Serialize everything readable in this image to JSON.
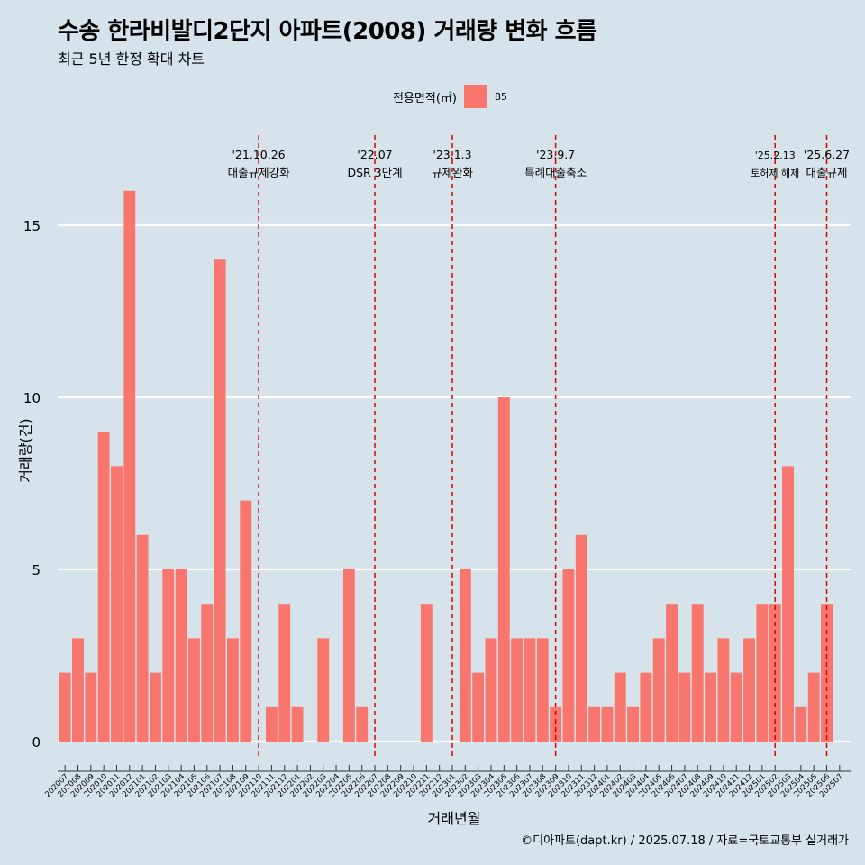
{
  "title": "수송 한라비발디2단지 아파트(2008) 거래량 변화 흐름",
  "subtitle": "최근 5년 한정 확대 차트",
  "caption": "©디아파트(dapt.kr) / 2025.07.18 / 자료=국토교통부 실거래가",
  "legend": {
    "title": "전용면적(㎡)",
    "label": "85",
    "color": "#f8766d"
  },
  "colors": {
    "background": "#d6e3ea",
    "bar": "#f8766d",
    "grid": "#ffffff",
    "event_line": "#e00000"
  },
  "chart_data": {
    "type": "bar",
    "title": "수송 한라비발디2단지 아파트(2008) 거래량 변화 흐름",
    "subtitle": "최근 5년 한정 확대 차트",
    "xlabel": "거래년월",
    "ylabel": "거래량(건)",
    "ylim": [
      0,
      16
    ],
    "yticks": [
      0,
      5,
      10,
      15
    ],
    "grid": "horizontal",
    "legend_position": "top",
    "categories": [
      "202007",
      "202008",
      "202009",
      "202010",
      "202011",
      "202012",
      "202101",
      "202102",
      "202103",
      "202104",
      "202105",
      "202106",
      "202107",
      "202108",
      "202109",
      "202110",
      "202111",
      "202112",
      "202201",
      "202202",
      "202203",
      "202204",
      "202205",
      "202206",
      "202207",
      "202208",
      "202209",
      "202210",
      "202211",
      "202212",
      "202301",
      "202302",
      "202303",
      "202304",
      "202305",
      "202306",
      "202307",
      "202308",
      "202309",
      "202310",
      "202311",
      "202312",
      "202401",
      "202402",
      "202403",
      "202404",
      "202405",
      "202406",
      "202407",
      "202408",
      "202409",
      "202410",
      "202411",
      "202412",
      "202501",
      "202502",
      "202503",
      "202504",
      "202505",
      "202506",
      "202507"
    ],
    "series": [
      {
        "name": "85",
        "values": [
          2,
          3,
          2,
          9,
          8,
          16,
          6,
          2,
          5,
          5,
          3,
          4,
          14,
          3,
          7,
          0,
          1,
          4,
          1,
          0,
          3,
          0,
          5,
          1,
          0,
          0,
          0,
          0,
          4,
          0,
          0,
          5,
          2,
          3,
          10,
          3,
          3,
          3,
          1,
          5,
          6,
          1,
          1,
          2,
          1,
          2,
          3,
          4,
          2,
          4,
          2,
          3,
          2,
          3,
          4,
          4,
          8,
          1,
          2,
          4,
          0
        ]
      }
    ],
    "annotations": [
      {
        "x": "202110",
        "date": "'21.10.26",
        "label": "대출규제강화"
      },
      {
        "x": "202207",
        "date": "'22.07",
        "label": "DSR 3단계"
      },
      {
        "x": "202301",
        "date": "'23.1.3",
        "label": "규제완화"
      },
      {
        "x": "202309",
        "date": "'23.9.7",
        "label": "특례대출축소"
      },
      {
        "x": "202502",
        "date": "'25.2.13",
        "label": "토허제 해제"
      },
      {
        "x": "202506",
        "date": "'25.6.27",
        "label": "대출규제"
      }
    ]
  }
}
